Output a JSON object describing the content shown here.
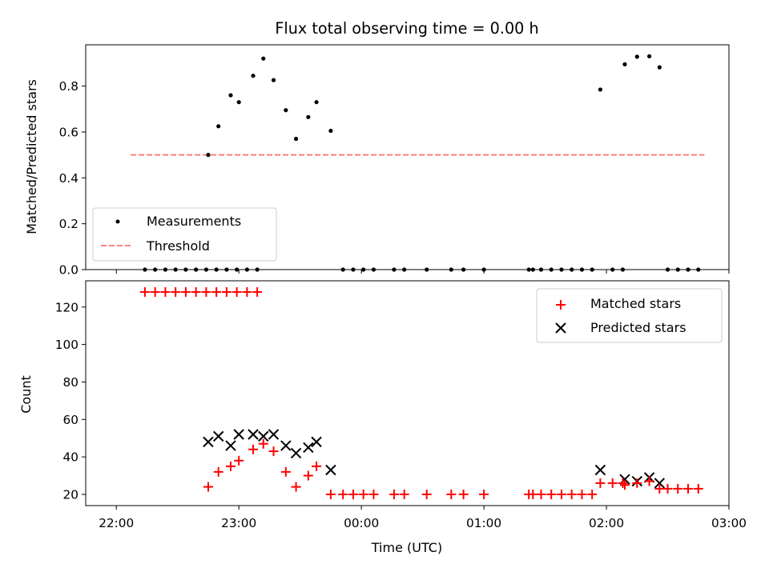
{
  "chart_data": [
    {
      "type": "scatter",
      "title": "Flux total observing time = 0.00 h",
      "xlabel": "",
      "ylabel": "Matched/Predicted stars",
      "xlim": [
        "21:45",
        "03:00"
      ],
      "ylim": [
        0,
        0.98
      ],
      "y_ticks": [
        "0.0",
        "0.2",
        "0.4",
        "0.6",
        "0.8"
      ],
      "legend_position": "lower-left",
      "series": [
        {
          "name": "Measurements",
          "color": "#000000",
          "marker": "dot",
          "points": [
            [
              "22:14",
              0
            ],
            [
              "22:19",
              0
            ],
            [
              "22:24",
              0
            ],
            [
              "22:29",
              0
            ],
            [
              "22:34",
              0
            ],
            [
              "22:39",
              0
            ],
            [
              "22:44",
              0
            ],
            [
              "22:49",
              0
            ],
            [
              "22:54",
              0
            ],
            [
              "22:59",
              0
            ],
            [
              "23:04",
              0
            ],
            [
              "23:09",
              0
            ],
            [
              "22:45",
              0.5
            ],
            [
              "22:50",
              0.625
            ],
            [
              "22:56",
              0.76
            ],
            [
              "23:00",
              0.73
            ],
            [
              "23:07",
              0.845
            ],
            [
              "23:12",
              0.92
            ],
            [
              "23:17",
              0.826
            ],
            [
              "23:23",
              0.695
            ],
            [
              "23:28",
              0.57
            ],
            [
              "23:34",
              0.665
            ],
            [
              "23:38",
              0.73
            ],
            [
              "23:45",
              0.605
            ],
            [
              "23:51",
              0
            ],
            [
              "23:56",
              0
            ],
            [
              "00:01",
              0
            ],
            [
              "00:06",
              0
            ],
            [
              "00:16",
              0
            ],
            [
              "00:21",
              0
            ],
            [
              "00:32",
              0
            ],
            [
              "00:44",
              0
            ],
            [
              "00:50",
              0
            ],
            [
              "01:00",
              0
            ],
            [
              "01:22",
              0
            ],
            [
              "01:24",
              0
            ],
            [
              "01:28",
              0
            ],
            [
              "01:33",
              0
            ],
            [
              "01:38",
              0
            ],
            [
              "01:43",
              0
            ],
            [
              "01:48",
              0
            ],
            [
              "01:53",
              0
            ],
            [
              "02:03",
              0
            ],
            [
              "02:08",
              0
            ],
            [
              "01:57",
              0.785
            ],
            [
              "02:09",
              0.895
            ],
            [
              "02:15",
              0.928
            ],
            [
              "02:21",
              0.93
            ],
            [
              "02:26",
              0.882
            ],
            [
              "02:30",
              0
            ],
            [
              "02:35",
              0
            ],
            [
              "02:40",
              0
            ],
            [
              "02:45",
              0
            ]
          ]
        },
        {
          "name": "Threshold",
          "type": "line",
          "style": "dashed",
          "color": "#ff8080",
          "x": [
            "22:07",
            "02:48"
          ],
          "y": [
            0.5,
            0.5
          ]
        }
      ]
    },
    {
      "type": "scatter",
      "title": "",
      "xlabel": "Time (UTC)",
      "ylabel": "Count",
      "xlim": [
        "21:45",
        "03:00"
      ],
      "ylim": [
        14,
        134
      ],
      "x_ticks": [
        "22:00",
        "23:00",
        "00:00",
        "01:00",
        "02:00",
        "03:00"
      ],
      "y_ticks": [
        "20",
        "40",
        "60",
        "80",
        "100",
        "120"
      ],
      "legend_position": "top-right",
      "series": [
        {
          "name": "Matched stars",
          "color": "#ff0000",
          "marker": "plus",
          "points": [
            [
              "22:14",
              128
            ],
            [
              "22:19",
              128
            ],
            [
              "22:24",
              128
            ],
            [
              "22:29",
              128
            ],
            [
              "22:34",
              128
            ],
            [
              "22:39",
              128
            ],
            [
              "22:44",
              128
            ],
            [
              "22:49",
              128
            ],
            [
              "22:54",
              128
            ],
            [
              "22:59",
              128
            ],
            [
              "23:04",
              128
            ],
            [
              "23:09",
              128
            ],
            [
              "22:45",
              24
            ],
            [
              "22:50",
              32
            ],
            [
              "22:56",
              35
            ],
            [
              "23:00",
              38
            ],
            [
              "23:07",
              44
            ],
            [
              "23:12",
              47
            ],
            [
              "23:17",
              43
            ],
            [
              "23:23",
              32
            ],
            [
              "23:28",
              24
            ],
            [
              "23:34",
              30
            ],
            [
              "23:38",
              35
            ],
            [
              "23:45",
              20
            ],
            [
              "23:51",
              20
            ],
            [
              "23:56",
              20
            ],
            [
              "00:01",
              20
            ],
            [
              "00:06",
              20
            ],
            [
              "00:16",
              20
            ],
            [
              "00:21",
              20
            ],
            [
              "00:32",
              20
            ],
            [
              "00:44",
              20
            ],
            [
              "00:50",
              20
            ],
            [
              "01:00",
              20
            ],
            [
              "01:22",
              20
            ],
            [
              "01:24",
              20
            ],
            [
              "01:28",
              20
            ],
            [
              "01:33",
              20
            ],
            [
              "01:38",
              20
            ],
            [
              "01:43",
              20
            ],
            [
              "01:48",
              20
            ],
            [
              "01:53",
              20
            ],
            [
              "01:57",
              26
            ],
            [
              "02:03",
              26
            ],
            [
              "02:08",
              26
            ],
            [
              "02:09",
              25
            ],
            [
              "02:15",
              26
            ],
            [
              "02:21",
              27
            ],
            [
              "02:26",
              23
            ],
            [
              "02:30",
              23
            ],
            [
              "02:35",
              23
            ],
            [
              "02:40",
              23
            ],
            [
              "02:45",
              23
            ]
          ]
        },
        {
          "name": "Predicted stars",
          "color": "#000000",
          "marker": "x",
          "points": [
            [
              "22:45",
              48
            ],
            [
              "22:50",
              51
            ],
            [
              "22:56",
              46
            ],
            [
              "23:00",
              52
            ],
            [
              "23:07",
              52
            ],
            [
              "23:12",
              51
            ],
            [
              "23:17",
              52
            ],
            [
              "23:23",
              46
            ],
            [
              "23:28",
              42
            ],
            [
              "23:34",
              45
            ],
            [
              "23:38",
              48
            ],
            [
              "23:45",
              33
            ],
            [
              "01:57",
              33
            ],
            [
              "02:09",
              28
            ],
            [
              "02:15",
              27
            ],
            [
              "02:21",
              29
            ],
            [
              "02:26",
              26
            ]
          ]
        }
      ]
    }
  ]
}
